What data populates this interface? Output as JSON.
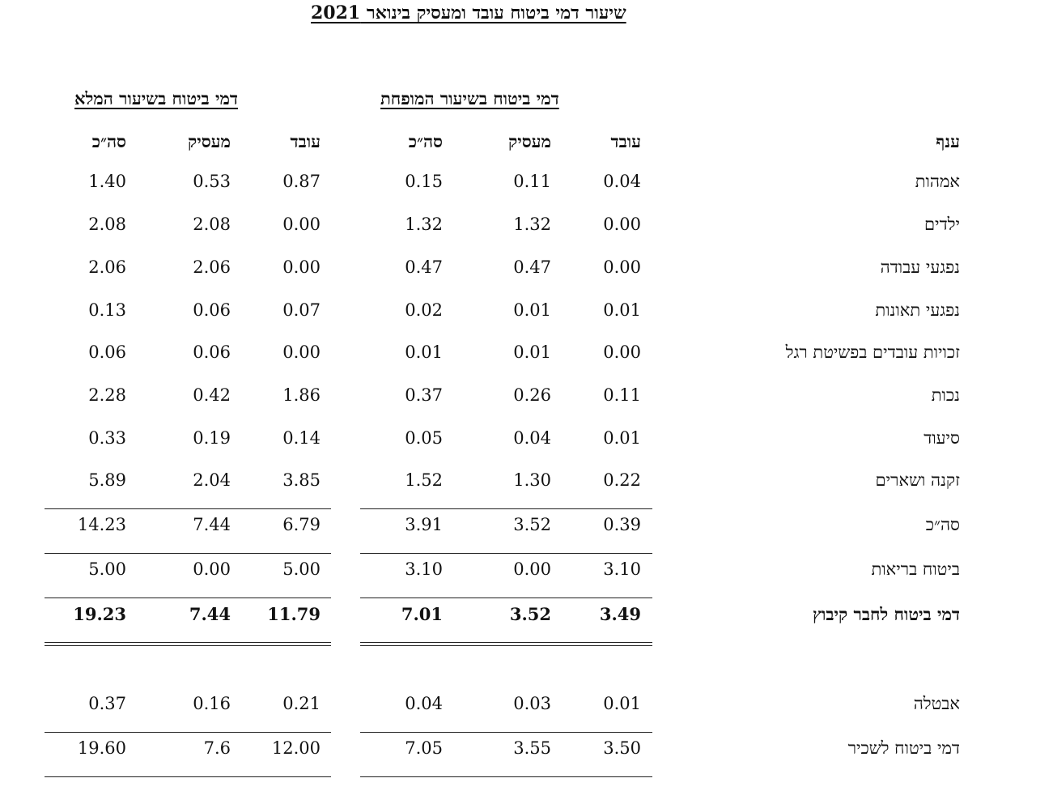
{
  "title": "שיעור דמי ביטוח עובד ומעסיק בינואר 2021",
  "groups": {
    "reduced": "דמי ביטוח בשיעור המופחת",
    "full": "דמי ביטוח בשיעור המלא"
  },
  "headers": {
    "branch": "ענף",
    "reduced": [
      "עובד",
      "מעסיק",
      "סה״כ"
    ],
    "full": [
      "עובד",
      "מעסיק",
      "סה״כ"
    ]
  },
  "rows": [
    {
      "label": "אמהות",
      "reduced": [
        "0.04",
        "0.11",
        "0.15"
      ],
      "full": [
        "0.87",
        "0.53",
        "1.40"
      ]
    },
    {
      "label": "ילדים",
      "reduced": [
        "0.00",
        "1.32",
        "1.32"
      ],
      "full": [
        "0.00",
        "2.08",
        "2.08"
      ]
    },
    {
      "label": "נפגעי עבודה",
      "reduced": [
        "0.00",
        "0.47",
        "0.47"
      ],
      "full": [
        "0.00",
        "2.06",
        "2.06"
      ]
    },
    {
      "label": "נפגעי תאונות",
      "reduced": [
        "0.01",
        "0.01",
        "0.02"
      ],
      "full": [
        "0.07",
        "0.06",
        "0.13"
      ]
    },
    {
      "label": "זכויות עובדים בפשיטת רגל",
      "reduced": [
        "0.00",
        "0.01",
        "0.01"
      ],
      "full": [
        "0.00",
        "0.06",
        "0.06"
      ]
    },
    {
      "label": "נכות",
      "reduced": [
        "0.11",
        "0.26",
        "0.37"
      ],
      "full": [
        "1.86",
        "0.42",
        "2.28"
      ]
    },
    {
      "label": "סיעוד",
      "reduced": [
        "0.01",
        "0.04",
        "0.05"
      ],
      "full": [
        "0.14",
        "0.19",
        "0.33"
      ]
    },
    {
      "label": "זקנה ושארים",
      "reduced": [
        "0.22",
        "1.30",
        "1.52"
      ],
      "full": [
        "3.85",
        "2.04",
        "5.89"
      ]
    },
    {
      "label": "סה״כ",
      "reduced": [
        "0.39",
        "3.52",
        "3.91"
      ],
      "full": [
        "6.79",
        "7.44",
        "14.23"
      ]
    },
    {
      "label": "ביטוח בריאות",
      "reduced": [
        "3.10",
        "0.00",
        "3.10"
      ],
      "full": [
        "5.00",
        "0.00",
        "5.00"
      ]
    },
    {
      "label": "דמי ביטוח לחבר קיבוץ",
      "reduced": [
        "3.49",
        "3.52",
        "7.01"
      ],
      "full": [
        "11.79",
        "7.44",
        "19.23"
      ]
    },
    {
      "label": "אבטלה",
      "reduced": [
        "0.01",
        "0.03",
        "0.04"
      ],
      "full": [
        "0.21",
        "0.16",
        "0.37"
      ]
    },
    {
      "label": "דמי ביטוח לשכיר",
      "reduced": [
        "3.50",
        "3.55",
        "7.05"
      ],
      "full": [
        "12.00",
        "7.6",
        "19.60"
      ]
    }
  ]
}
